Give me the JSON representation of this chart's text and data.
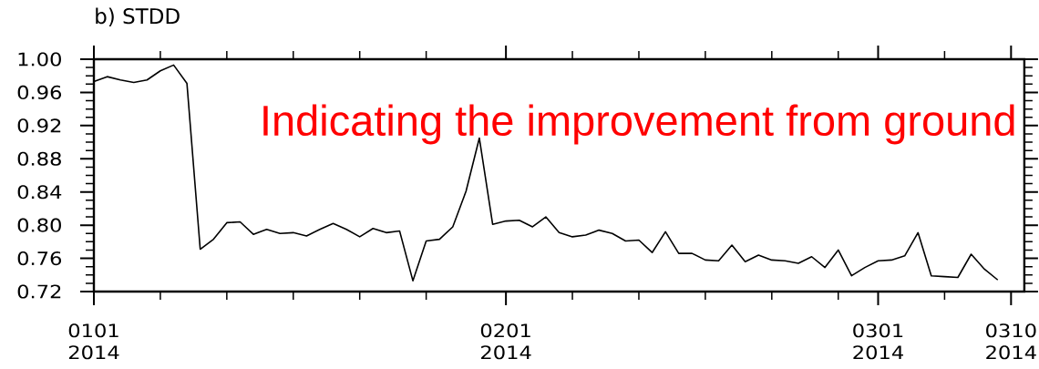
{
  "chart_data": {
    "type": "line",
    "title": "b) STDD",
    "annotations": [
      "Indicating the improvement from ground"
    ],
    "color": "#000000",
    "line_style": "solid",
    "x": [
      "2014-01-01",
      "2014-01-02",
      "2014-01-03",
      "2014-01-04",
      "2014-01-05",
      "2014-01-06",
      "2014-01-07",
      "2014-01-08",
      "2014-01-09",
      "2014-01-10",
      "2014-01-11",
      "2014-01-12",
      "2014-01-13",
      "2014-01-14",
      "2014-01-15",
      "2014-01-16",
      "2014-01-17",
      "2014-01-18",
      "2014-01-19",
      "2014-01-20",
      "2014-01-21",
      "2014-01-22",
      "2014-01-23",
      "2014-01-24",
      "2014-01-25",
      "2014-01-26",
      "2014-01-27",
      "2014-01-28",
      "2014-01-29",
      "2014-01-30",
      "2014-01-31",
      "2014-02-01",
      "2014-02-02",
      "2014-02-03",
      "2014-02-04",
      "2014-02-05",
      "2014-02-06",
      "2014-02-07",
      "2014-02-08",
      "2014-02-09",
      "2014-02-10",
      "2014-02-11",
      "2014-02-12",
      "2014-02-13",
      "2014-02-14",
      "2014-02-15",
      "2014-02-16",
      "2014-02-17",
      "2014-02-18",
      "2014-02-19",
      "2014-02-20",
      "2014-02-21",
      "2014-02-22",
      "2014-02-23",
      "2014-02-24",
      "2014-02-25",
      "2014-02-26",
      "2014-02-27",
      "2014-02-28",
      "2014-03-01",
      "2014-03-02",
      "2014-03-03",
      "2014-03-04",
      "2014-03-05",
      "2014-03-06",
      "2014-03-07",
      "2014-03-08",
      "2014-03-09",
      "2014-03-10"
    ],
    "values": [
      0.973,
      0.979,
      0.975,
      0.972,
      0.975,
      0.986,
      0.993,
      0.971,
      0.771,
      0.783,
      0.803,
      0.804,
      0.789,
      0.795,
      0.79,
      0.791,
      0.787,
      0.795,
      0.802,
      0.795,
      0.786,
      0.796,
      0.791,
      0.793,
      0.733,
      0.781,
      0.783,
      0.798,
      0.841,
      0.905,
      0.801,
      0.805,
      0.806,
      0.798,
      0.81,
      0.791,
      0.786,
      0.788,
      0.794,
      0.79,
      0.781,
      0.782,
      0.767,
      0.792,
      0.766,
      0.766,
      0.758,
      0.757,
      0.776,
      0.756,
      0.764,
      0.758,
      0.757,
      0.754,
      0.762,
      0.749,
      0.77,
      0.739,
      0.749,
      0.757,
      0.758,
      0.763,
      0.791,
      0.739,
      0.738,
      0.737,
      0.765,
      0.747,
      0.734
    ],
    "xlim": [
      "2014-01-01",
      "2014-03-12"
    ],
    "xticks": [
      {
        "value": "2014-01-01",
        "label": "0101 2014"
      },
      {
        "value": "2014-01-06",
        "label": null
      },
      {
        "value": "2014-01-11",
        "label": null
      },
      {
        "value": "2014-01-16",
        "label": null
      },
      {
        "value": "2014-01-21",
        "label": null
      },
      {
        "value": "2014-01-26",
        "label": null
      },
      {
        "value": "2014-02-01",
        "label": "0201 2014"
      },
      {
        "value": "2014-02-06",
        "label": null
      },
      {
        "value": "2014-02-11",
        "label": null
      },
      {
        "value": "2014-02-16",
        "label": null
      },
      {
        "value": "2014-02-21",
        "label": null
      },
      {
        "value": "2014-02-26",
        "label": null
      },
      {
        "value": "2014-03-01",
        "label": "0301 2014"
      },
      {
        "value": "2014-03-06",
        "label": null
      },
      {
        "value": "2014-03-11",
        "label": "0310 2014"
      }
    ],
    "ylim": [
      0.72,
      1.0
    ],
    "yticks": [
      {
        "value": 0.72,
        "label": "0.72"
      },
      {
        "value": 0.73,
        "label": null
      },
      {
        "value": 0.74,
        "label": null
      },
      {
        "value": 0.75,
        "label": null
      },
      {
        "value": 0.76,
        "label": "0.76"
      },
      {
        "value": 0.77,
        "label": null
      },
      {
        "value": 0.78,
        "label": null
      },
      {
        "value": 0.79,
        "label": null
      },
      {
        "value": 0.8,
        "label": "0.80"
      },
      {
        "value": 0.81,
        "label": null
      },
      {
        "value": 0.82,
        "label": null
      },
      {
        "value": 0.83,
        "label": null
      },
      {
        "value": 0.84,
        "label": "0.84"
      },
      {
        "value": 0.85,
        "label": null
      },
      {
        "value": 0.86,
        "label": null
      },
      {
        "value": 0.87,
        "label": null
      },
      {
        "value": 0.88,
        "label": "0.88"
      },
      {
        "value": 0.89,
        "label": null
      },
      {
        "value": 0.9,
        "label": null
      },
      {
        "value": 0.91,
        "label": null
      },
      {
        "value": 0.92,
        "label": "0.92"
      },
      {
        "value": 0.93,
        "label": null
      },
      {
        "value": 0.94,
        "label": null
      },
      {
        "value": 0.95,
        "label": null
      },
      {
        "value": 0.96,
        "label": "0.96"
      },
      {
        "value": 0.97,
        "label": null
      },
      {
        "value": 0.98,
        "label": null
      },
      {
        "value": 0.99,
        "label": null
      },
      {
        "value": 1.0,
        "label": "1.00"
      }
    ]
  }
}
